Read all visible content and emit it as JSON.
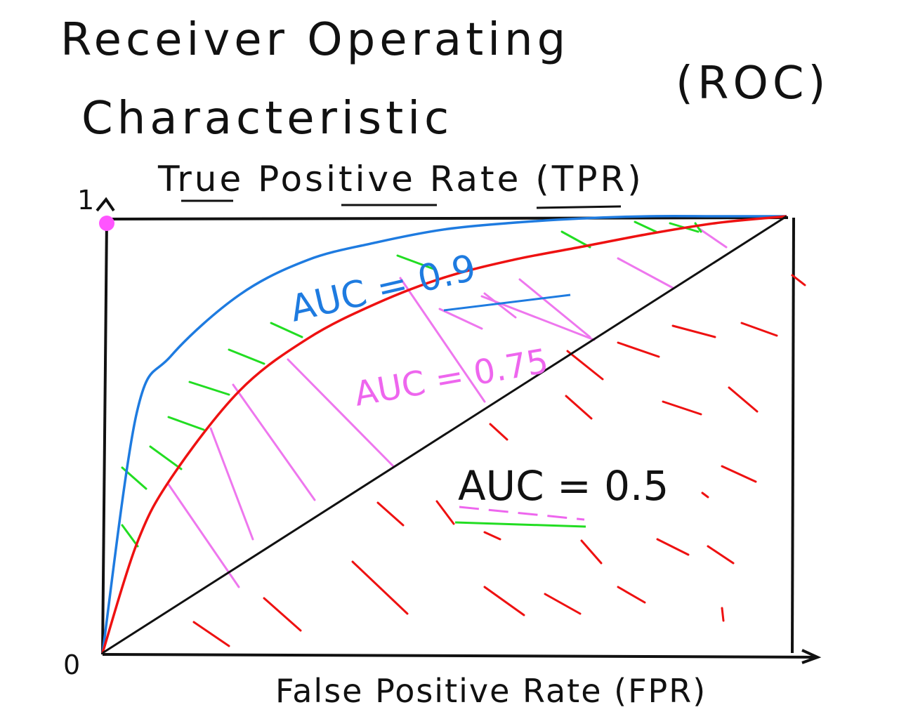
{
  "title": {
    "line1": "Receiver Operating",
    "line2": "Characteristic",
    "abbr": "(ROC)"
  },
  "axes": {
    "y_label": "True Positive Rate (TPR)",
    "x_label": "False Positive Rate (FPR)",
    "y_max_tick": "1",
    "origin_tick": "0"
  },
  "annotations": {
    "auc_09": "AUC = 0.9",
    "auc_075": "AUC = 0.75",
    "auc_05": "AUC = 0.5"
  },
  "colors": {
    "ink": "#111111",
    "auc_09": "#1e7be0",
    "auc_075": "#e000e0",
    "auc_05": "#ee1111",
    "hatch_green": "#22dd22",
    "hatch_pink": "#ee77ee",
    "hatch_red": "#ee1111",
    "marker": "#ff55ff"
  },
  "chart_data": {
    "type": "line",
    "xlabel": "False Positive Rate (FPR)",
    "ylabel": "True Positive Rate (TPR)",
    "xlim": [
      0,
      1
    ],
    "ylim": [
      0,
      1
    ],
    "series": [
      {
        "name": "AUC = 0.9",
        "x": [
          0,
          0.05,
          0.1,
          0.2,
          0.3,
          0.4,
          0.5,
          0.6,
          0.7,
          0.8,
          0.9,
          1.0
        ],
        "y": [
          0,
          0.55,
          0.68,
          0.82,
          0.9,
          0.94,
          0.97,
          0.985,
          0.995,
          1.0,
          1.0,
          1.0
        ]
      },
      {
        "name": "AUC = 0.75",
        "x": [
          0,
          0.05,
          0.1,
          0.2,
          0.3,
          0.4,
          0.5,
          0.6,
          0.7,
          0.8,
          0.9,
          1.0
        ],
        "y": [
          0,
          0.25,
          0.4,
          0.6,
          0.72,
          0.8,
          0.86,
          0.9,
          0.93,
          0.96,
          0.985,
          1.0
        ]
      },
      {
        "name": "AUC = 0.5",
        "x": [
          0,
          1
        ],
        "y": [
          0,
          1
        ]
      }
    ]
  }
}
